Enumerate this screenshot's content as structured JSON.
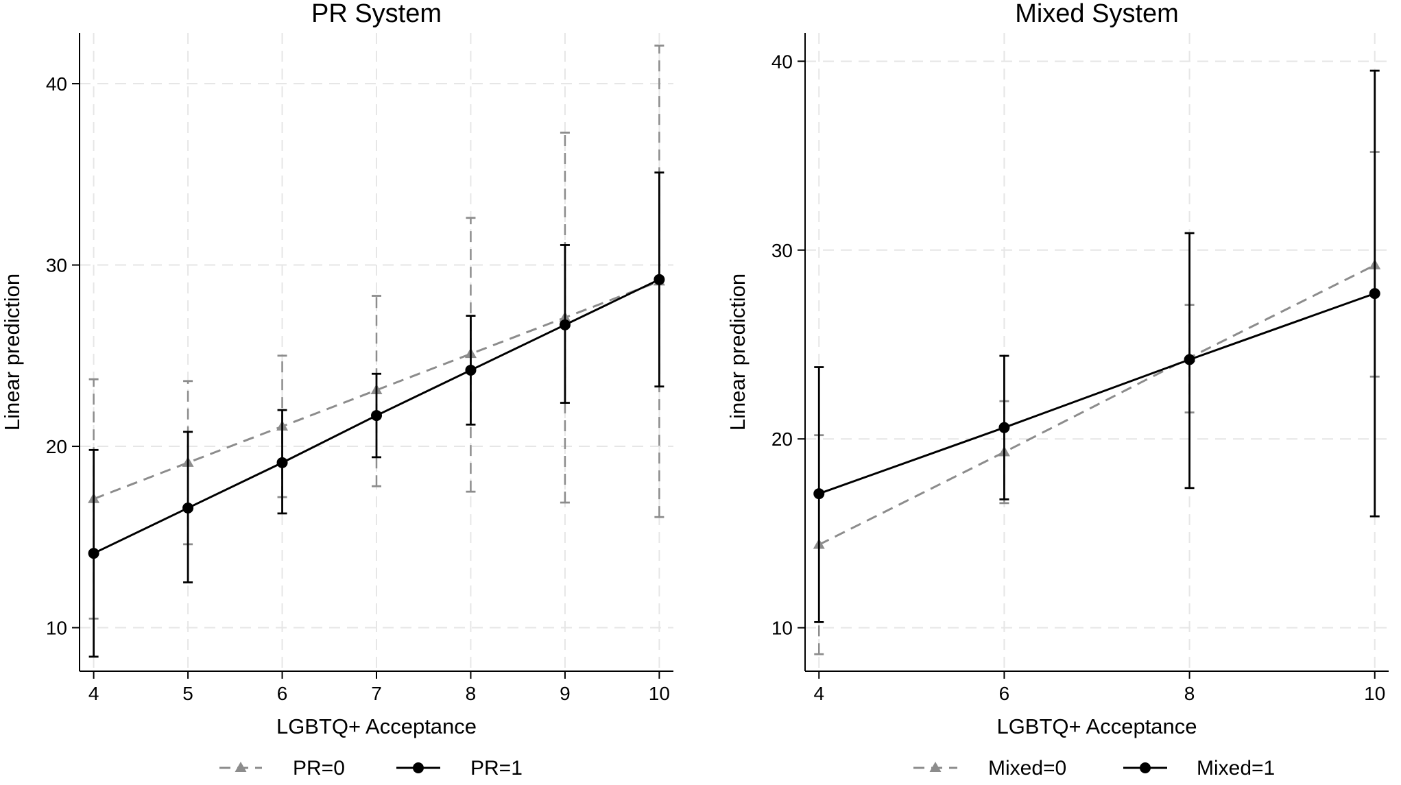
{
  "chart_data": [
    {
      "type": "line",
      "title": "PR System",
      "xlabel": "LGBTQ+ Acceptance",
      "ylabel": "Linear prediction",
      "x": [
        4,
        5,
        6,
        7,
        8,
        9,
        10
      ],
      "xticks": [
        "4",
        "5",
        "6",
        "7",
        "8",
        "9",
        "10"
      ],
      "yticks": [
        "10",
        "20",
        "30",
        "40"
      ],
      "xlim": [
        3.85,
        10.15
      ],
      "ylim": [
        7.6,
        42.8
      ],
      "grid": true,
      "legend_position": "bottom",
      "series": [
        {
          "name": "PR=0",
          "style": "dashed",
          "marker": "triangle",
          "color": "#8c8c8c",
          "values": [
            17.1,
            19.1,
            21.1,
            23.1,
            25.1,
            27.1,
            29.1
          ],
          "ci_lower": [
            10.5,
            14.6,
            17.2,
            17.8,
            17.5,
            16.9,
            16.1
          ],
          "ci_upper": [
            23.7,
            23.6,
            25.0,
            28.3,
            32.6,
            37.3,
            42.1
          ]
        },
        {
          "name": "PR=1",
          "style": "solid",
          "marker": "circle",
          "color": "#000000",
          "values": [
            14.1,
            16.6,
            19.1,
            21.7,
            24.2,
            26.7,
            29.2
          ],
          "ci_lower": [
            8.4,
            12.5,
            16.3,
            19.4,
            21.2,
            22.4,
            23.3
          ],
          "ci_upper": [
            19.8,
            20.8,
            22.0,
            24.0,
            27.2,
            31.1,
            35.1
          ]
        }
      ]
    },
    {
      "type": "line",
      "title": "Mixed System",
      "xlabel": "LGBTQ+ Acceptance",
      "ylabel": "Linear prediction",
      "x": [
        4,
        6,
        8,
        10
      ],
      "xticks": [
        "4",
        "6",
        "8",
        "10"
      ],
      "yticks": [
        "10",
        "20",
        "30",
        "40"
      ],
      "xlim": [
        3.85,
        10.15
      ],
      "ylim": [
        7.7,
        41.5
      ],
      "grid": true,
      "legend_position": "bottom",
      "series": [
        {
          "name": "Mixed=0",
          "style": "dashed",
          "marker": "triangle",
          "color": "#8c8c8c",
          "values": [
            14.4,
            19.3,
            24.3,
            29.2
          ],
          "ci_lower": [
            8.6,
            16.6,
            21.4,
            23.3
          ],
          "ci_upper": [
            20.2,
            22.0,
            27.1,
            35.2
          ]
        },
        {
          "name": "Mixed=1",
          "style": "solid",
          "marker": "circle",
          "color": "#000000",
          "values": [
            17.1,
            20.6,
            24.2,
            27.7
          ],
          "ci_lower": [
            10.3,
            16.8,
            17.4,
            15.9
          ],
          "ci_upper": [
            23.8,
            24.4,
            30.9,
            39.5
          ]
        }
      ]
    }
  ]
}
